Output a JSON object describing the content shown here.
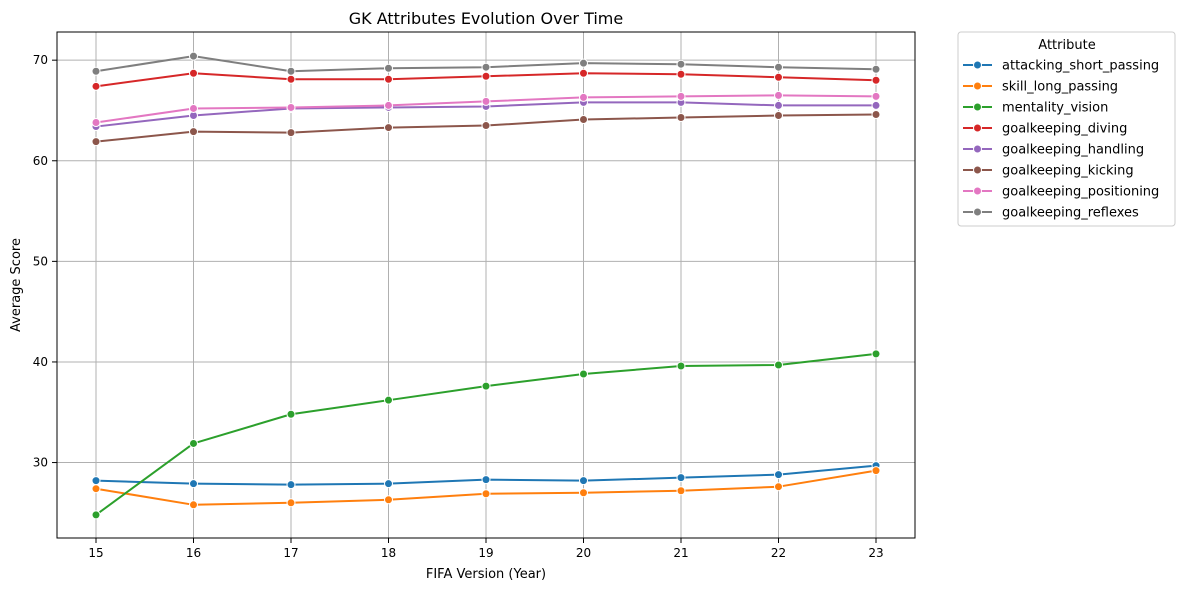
{
  "chart_data": {
    "type": "line",
    "title": "GK Attributes Evolution Over Time",
    "xlabel": "FIFA Version (Year)",
    "ylabel": "Average Score",
    "x": [
      15,
      16,
      17,
      18,
      19,
      20,
      21,
      22,
      23
    ],
    "xticks": [
      "15",
      "16",
      "17",
      "18",
      "19",
      "20",
      "21",
      "22",
      "23"
    ],
    "yticks": [
      30,
      40,
      50,
      60,
      70
    ],
    "ytick_labels": [
      "30",
      "40",
      "50",
      "60",
      "70"
    ],
    "xlim": [
      14.6,
      23.4
    ],
    "ylim": [
      22.5,
      72.8
    ],
    "grid": true,
    "legend": {
      "title": "Attribute",
      "placement": "outside-right-top"
    },
    "series": [
      {
        "name": "attacking_short_passing",
        "color": "#1f77b4",
        "values": [
          28.2,
          27.9,
          27.8,
          27.9,
          28.3,
          28.2,
          28.5,
          28.8,
          29.7
        ]
      },
      {
        "name": "skill_long_passing",
        "color": "#ff7f0e",
        "values": [
          27.4,
          25.8,
          26.0,
          26.3,
          26.9,
          27.0,
          27.2,
          27.6,
          29.2
        ]
      },
      {
        "name": "mentality_vision",
        "color": "#2ca02c",
        "values": [
          24.8,
          31.9,
          34.8,
          36.2,
          37.6,
          38.8,
          39.6,
          39.7,
          40.8
        ]
      },
      {
        "name": "goalkeeping_diving",
        "color": "#d62728",
        "values": [
          67.4,
          68.7,
          68.1,
          68.1,
          68.4,
          68.7,
          68.6,
          68.3,
          68.0
        ]
      },
      {
        "name": "goalkeeping_handling",
        "color": "#9467bd",
        "values": [
          63.4,
          64.5,
          65.2,
          65.3,
          65.4,
          65.8,
          65.8,
          65.5,
          65.5
        ]
      },
      {
        "name": "goalkeeping_kicking",
        "color": "#8c564b",
        "values": [
          61.9,
          62.9,
          62.8,
          63.3,
          63.5,
          64.1,
          64.3,
          64.5,
          64.6
        ]
      },
      {
        "name": "goalkeeping_positioning",
        "color": "#e377c2",
        "values": [
          63.8,
          65.2,
          65.3,
          65.5,
          65.9,
          66.3,
          66.4,
          66.5,
          66.4
        ]
      },
      {
        "name": "goalkeeping_reflexes",
        "color": "#7f7f7f",
        "values": [
          68.9,
          70.4,
          68.9,
          69.2,
          69.3,
          69.7,
          69.6,
          69.3,
          69.1
        ]
      }
    ]
  }
}
